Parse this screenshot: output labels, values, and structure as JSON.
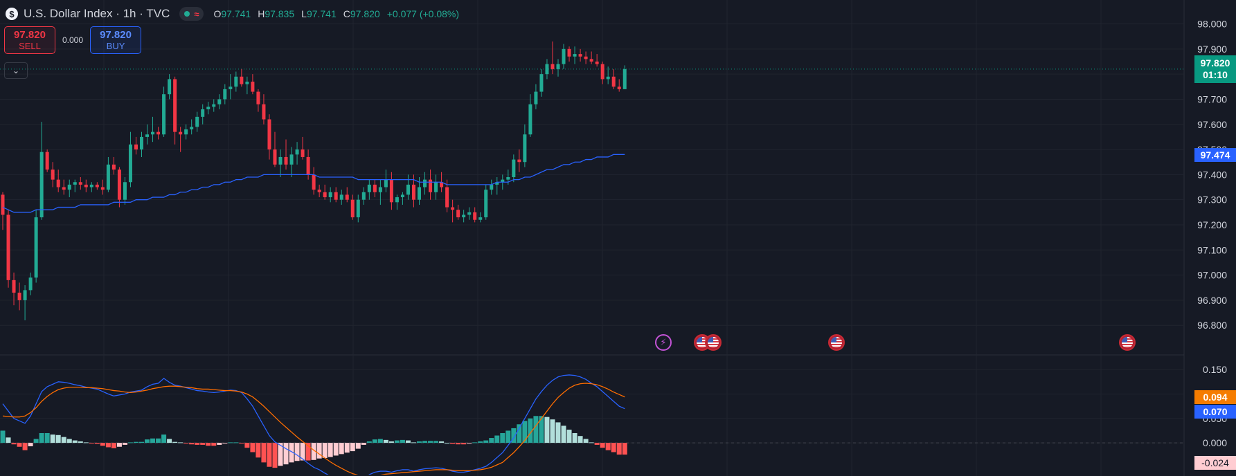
{
  "header": {
    "symbol_icon": "dollar-logo-icon",
    "logo_glyph": "$",
    "title": "U.S. Dollar Index · 1h · TVC",
    "ohlc": {
      "o_label": "O",
      "o": "97.741",
      "h_label": "H",
      "h": "97.835",
      "l_label": "L",
      "l": "97.741",
      "c_label": "C",
      "c": "97.820",
      "change": "+0.077 (+0.08%)"
    }
  },
  "trade": {
    "sell_price": "97.820",
    "sell_label": "SELL",
    "spread": "0.000",
    "buy_price": "97.820",
    "buy_label": "BUY"
  },
  "tags": {
    "last_price": "97.820",
    "countdown": "01:10",
    "ma_value": "97.474",
    "signal_value": "0.094",
    "macd_value": "0.070",
    "hist_value": "-0.024"
  },
  "colors": {
    "up": "#22ab94",
    "down": "#f23645",
    "ma": "#2962ff",
    "macd": "#2962ff",
    "signal": "#ff6d00",
    "background": "#161a25",
    "grid": "#20242f",
    "hist_pos_strong": "#26a69a",
    "hist_pos_weak": "#b2dfdb",
    "hist_neg_strong": "#ff5252",
    "hist_neg_weak": "#ffcdd2"
  },
  "events": [
    {
      "type": "lightning-icon",
      "glyph": "⚡"
    },
    {
      "type": "us-flag-icon"
    },
    {
      "type": "us-flag-icon"
    },
    {
      "type": "us-flag-icon"
    },
    {
      "type": "us-flag-icon"
    }
  ],
  "chart_data": [
    {
      "type": "candlestick",
      "title": "U.S. Dollar Index · 1h · TVC",
      "ylim": [
        96.74,
        98.04
      ],
      "yticks": [
        "98.000",
        "97.900",
        "97.800",
        "97.700",
        "97.600",
        "97.500",
        "97.400",
        "97.300",
        "97.200",
        "97.100",
        "97.000",
        "96.900",
        "96.800"
      ],
      "grid": true,
      "candles": [
        [
          97.32,
          97.33,
          97.18,
          97.24
        ],
        [
          97.24,
          97.26,
          96.95,
          96.98
        ],
        [
          96.98,
          97.01,
          96.88,
          96.93
        ],
        [
          96.93,
          96.97,
          96.86,
          96.9
        ],
        [
          96.9,
          96.96,
          96.82,
          96.94
        ],
        [
          96.94,
          97.01,
          96.92,
          96.99
        ],
        [
          96.99,
          97.26,
          96.97,
          97.23
        ],
        [
          97.23,
          97.61,
          97.22,
          97.49
        ],
        [
          97.49,
          97.5,
          97.41,
          97.42
        ],
        [
          97.42,
          97.45,
          97.35,
          97.38
        ],
        [
          97.38,
          97.42,
          97.33,
          97.35
        ],
        [
          97.35,
          97.38,
          97.32,
          97.34
        ],
        [
          97.34,
          97.38,
          97.31,
          97.36
        ],
        [
          97.36,
          97.38,
          97.33,
          97.37
        ],
        [
          97.37,
          97.39,
          97.34,
          97.36
        ],
        [
          97.36,
          97.38,
          97.33,
          97.35
        ],
        [
          97.35,
          97.37,
          97.33,
          97.36
        ],
        [
          97.36,
          97.37,
          97.34,
          97.35
        ],
        [
          97.35,
          97.38,
          97.32,
          97.34
        ],
        [
          97.34,
          97.47,
          97.33,
          97.44
        ],
        [
          97.44,
          97.47,
          97.4,
          97.42
        ],
        [
          97.42,
          97.43,
          97.27,
          97.3
        ],
        [
          97.3,
          97.39,
          97.28,
          97.37
        ],
        [
          97.37,
          97.57,
          97.35,
          97.52
        ],
        [
          97.52,
          97.55,
          97.48,
          97.5
        ],
        [
          97.5,
          97.57,
          97.47,
          97.55
        ],
        [
          97.55,
          97.6,
          97.52,
          97.56
        ],
        [
          97.56,
          97.63,
          97.53,
          97.57
        ],
        [
          97.57,
          97.59,
          97.54,
          97.56
        ],
        [
          97.56,
          97.75,
          97.55,
          97.72
        ],
        [
          97.72,
          97.8,
          97.7,
          97.78
        ],
        [
          97.78,
          97.79,
          97.52,
          97.57
        ],
        [
          97.57,
          97.59,
          97.49,
          97.56
        ],
        [
          97.56,
          97.6,
          97.54,
          97.58
        ],
        [
          97.58,
          97.62,
          97.56,
          97.59
        ],
        [
          97.59,
          97.65,
          97.57,
          97.63
        ],
        [
          97.63,
          97.68,
          97.6,
          97.66
        ],
        [
          97.66,
          97.69,
          97.64,
          97.67
        ],
        [
          97.67,
          97.7,
          97.65,
          97.68
        ],
        [
          97.68,
          97.72,
          97.66,
          97.7
        ],
        [
          97.7,
          97.76,
          97.68,
          97.74
        ],
        [
          97.74,
          97.8,
          97.7,
          97.75
        ],
        [
          97.75,
          97.81,
          97.73,
          97.79
        ],
        [
          97.79,
          97.82,
          97.75,
          97.76
        ],
        [
          97.76,
          97.79,
          97.72,
          97.77
        ],
        [
          97.77,
          97.8,
          97.72,
          97.73
        ],
        [
          97.73,
          97.74,
          97.65,
          97.68
        ],
        [
          97.68,
          97.72,
          97.6,
          97.62
        ],
        [
          97.62,
          97.64,
          97.46,
          97.5
        ],
        [
          97.5,
          97.57,
          97.43,
          97.44
        ],
        [
          97.44,
          97.5,
          97.39,
          97.47
        ],
        [
          97.47,
          97.54,
          97.42,
          97.44
        ],
        [
          97.44,
          97.51,
          97.39,
          97.48
        ],
        [
          97.48,
          97.53,
          97.44,
          97.5
        ],
        [
          97.5,
          97.55,
          97.46,
          97.47
        ],
        [
          97.47,
          97.5,
          97.38,
          97.4
        ],
        [
          97.4,
          97.43,
          97.32,
          97.34
        ],
        [
          97.34,
          97.36,
          97.31,
          97.33
        ],
        [
          97.33,
          97.36,
          97.3,
          97.31
        ],
        [
          97.31,
          97.35,
          97.29,
          97.33
        ],
        [
          97.33,
          97.35,
          97.29,
          97.3
        ],
        [
          97.3,
          97.34,
          97.28,
          97.32
        ],
        [
          97.32,
          97.35,
          97.29,
          97.3
        ],
        [
          97.3,
          97.32,
          97.22,
          97.23
        ],
        [
          97.23,
          97.32,
          97.21,
          97.3
        ],
        [
          97.3,
          97.35,
          97.28,
          97.33
        ],
        [
          97.33,
          97.38,
          97.3,
          97.36
        ],
        [
          97.36,
          97.38,
          97.31,
          97.33
        ],
        [
          97.33,
          97.38,
          97.28,
          97.35
        ],
        [
          97.35,
          97.42,
          97.33,
          97.38
        ],
        [
          97.38,
          97.41,
          97.26,
          97.29
        ],
        [
          97.29,
          97.32,
          97.26,
          97.31
        ],
        [
          97.31,
          97.33,
          97.28,
          97.32
        ],
        [
          97.32,
          97.4,
          97.3,
          97.36
        ],
        [
          97.36,
          97.4,
          97.27,
          97.3
        ],
        [
          97.3,
          97.39,
          97.28,
          97.35
        ],
        [
          97.35,
          97.41,
          97.32,
          97.38
        ],
        [
          97.38,
          97.42,
          97.3,
          97.33
        ],
        [
          97.33,
          97.4,
          97.3,
          97.37
        ],
        [
          97.37,
          97.41,
          97.33,
          97.35
        ],
        [
          97.35,
          97.38,
          97.25,
          97.27
        ],
        [
          97.27,
          97.3,
          97.21,
          97.26
        ],
        [
          97.26,
          97.28,
          97.22,
          97.23
        ],
        [
          97.23,
          97.26,
          97.21,
          97.24
        ],
        [
          97.24,
          97.27,
          97.22,
          97.25
        ],
        [
          97.25,
          97.27,
          97.21,
          97.22
        ],
        [
          97.22,
          97.25,
          97.21,
          97.23
        ],
        [
          97.23,
          97.36,
          97.22,
          97.34
        ],
        [
          97.34,
          97.38,
          97.32,
          97.36
        ],
        [
          97.36,
          97.39,
          97.32,
          97.37
        ],
        [
          97.37,
          97.4,
          97.34,
          97.38
        ],
        [
          97.38,
          97.42,
          97.36,
          97.39
        ],
        [
          97.39,
          97.48,
          97.37,
          97.46
        ],
        [
          97.46,
          97.5,
          97.41,
          97.45
        ],
        [
          97.45,
          97.6,
          97.43,
          97.56
        ],
        [
          97.56,
          97.72,
          97.55,
          97.68
        ],
        [
          97.68,
          97.76,
          97.66,
          97.73
        ],
        [
          97.73,
          97.82,
          97.71,
          97.8
        ],
        [
          97.8,
          97.86,
          97.78,
          97.84
        ],
        [
          97.84,
          97.93,
          97.8,
          97.82
        ],
        [
          97.82,
          97.86,
          97.79,
          97.84
        ],
        [
          97.84,
          97.92,
          97.82,
          97.9
        ],
        [
          97.9,
          97.91,
          97.85,
          97.87
        ],
        [
          97.87,
          97.91,
          97.84,
          97.88
        ],
        [
          97.88,
          97.9,
          97.85,
          97.87
        ],
        [
          97.87,
          97.89,
          97.84,
          97.86
        ],
        [
          97.86,
          97.89,
          97.84,
          97.85
        ],
        [
          97.85,
          97.88,
          97.83,
          97.84
        ],
        [
          97.84,
          97.85,
          97.76,
          97.78
        ],
        [
          97.78,
          97.83,
          97.76,
          97.79
        ],
        [
          97.79,
          97.82,
          97.74,
          97.75
        ],
        [
          97.75,
          97.78,
          97.73,
          97.74
        ],
        [
          97.74,
          97.835,
          97.741,
          97.82
        ]
      ],
      "moving_average": [
        97.27,
        97.26,
        97.25,
        97.25,
        97.25,
        97.25,
        97.26,
        97.26,
        97.26,
        97.26,
        97.27,
        97.27,
        97.27,
        97.27,
        97.28,
        97.28,
        97.28,
        97.28,
        97.28,
        97.28,
        97.29,
        97.29,
        97.29,
        97.29,
        97.3,
        97.3,
        97.3,
        97.31,
        97.31,
        97.31,
        97.32,
        97.32,
        97.33,
        97.33,
        97.34,
        97.34,
        97.35,
        97.35,
        97.36,
        97.36,
        97.37,
        97.37,
        97.38,
        97.38,
        97.39,
        97.39,
        97.39,
        97.4,
        97.4,
        97.4,
        97.4,
        97.4,
        97.4,
        97.4,
        97.4,
        97.4,
        97.4,
        97.39,
        97.39,
        97.39,
        97.39,
        97.39,
        97.39,
        97.39,
        97.38,
        97.38,
        97.38,
        97.38,
        97.38,
        97.38,
        97.38,
        97.38,
        97.38,
        97.38,
        97.38,
        97.37,
        97.37,
        97.37,
        97.37,
        97.37,
        97.36,
        97.36,
        97.36,
        97.36,
        97.36,
        97.36,
        97.36,
        97.36,
        97.36,
        97.37,
        97.37,
        97.37,
        97.38,
        97.38,
        97.39,
        97.39,
        97.4,
        97.41,
        97.42,
        97.42,
        97.43,
        97.44,
        97.44,
        97.45,
        97.45,
        97.46,
        97.46,
        97.47,
        97.47,
        97.47,
        97.48,
        97.48,
        97.48
      ]
    },
    {
      "type": "macd",
      "ylim": [
        -0.065,
        0.18
      ],
      "yticks": [
        "0.150",
        "0.100",
        "0.050",
        "0.000"
      ],
      "macd": [
        0.08,
        0.065,
        0.05,
        0.045,
        0.04,
        0.055,
        0.08,
        0.105,
        0.115,
        0.12,
        0.125,
        0.124,
        0.122,
        0.119,
        0.117,
        0.114,
        0.112,
        0.11,
        0.105,
        0.1,
        0.096,
        0.098,
        0.1,
        0.104,
        0.106,
        0.108,
        0.115,
        0.12,
        0.122,
        0.132,
        0.124,
        0.118,
        0.116,
        0.113,
        0.11,
        0.107,
        0.106,
        0.104,
        0.103,
        0.104,
        0.106,
        0.108,
        0.107,
        0.103,
        0.09,
        0.075,
        0.055,
        0.035,
        0.015,
        0.002,
        -0.005,
        -0.012,
        -0.018,
        -0.025,
        -0.033,
        -0.042,
        -0.05,
        -0.055,
        -0.062,
        -0.068,
        -0.072,
        -0.075,
        -0.078,
        -0.08,
        -0.078,
        -0.072,
        -0.065,
        -0.06,
        -0.058,
        -0.058,
        -0.06,
        -0.057,
        -0.055,
        -0.055,
        -0.058,
        -0.055,
        -0.053,
        -0.052,
        -0.051,
        -0.052,
        -0.055,
        -0.058,
        -0.06,
        -0.06,
        -0.058,
        -0.055,
        -0.052,
        -0.048,
        -0.04,
        -0.03,
        -0.02,
        -0.005,
        0.01,
        0.03,
        0.05,
        0.07,
        0.09,
        0.105,
        0.118,
        0.128,
        0.135,
        0.138,
        0.139,
        0.138,
        0.135,
        0.13,
        0.122,
        0.115,
        0.105,
        0.095,
        0.085,
        0.075,
        0.07
      ],
      "signal": [
        0.055,
        0.054,
        0.053,
        0.053,
        0.055,
        0.062,
        0.072,
        0.085,
        0.095,
        0.103,
        0.109,
        0.112,
        0.114,
        0.114,
        0.114,
        0.113,
        0.113,
        0.112,
        0.111,
        0.109,
        0.107,
        0.106,
        0.104,
        0.103,
        0.104,
        0.106,
        0.108,
        0.111,
        0.113,
        0.115,
        0.116,
        0.116,
        0.115,
        0.114,
        0.113,
        0.111,
        0.11,
        0.11,
        0.109,
        0.108,
        0.107,
        0.107,
        0.106,
        0.104,
        0.1,
        0.094,
        0.085,
        0.075,
        0.064,
        0.053,
        0.042,
        0.032,
        0.022,
        0.012,
        0.003,
        -0.006,
        -0.015,
        -0.023,
        -0.031,
        -0.039,
        -0.046,
        -0.052,
        -0.058,
        -0.063,
        -0.066,
        -0.068,
        -0.068,
        -0.067,
        -0.066,
        -0.064,
        -0.063,
        -0.062,
        -0.061,
        -0.06,
        -0.059,
        -0.058,
        -0.057,
        -0.056,
        -0.055,
        -0.055,
        -0.055,
        -0.056,
        -0.057,
        -0.057,
        -0.057,
        -0.056,
        -0.055,
        -0.053,
        -0.05,
        -0.045,
        -0.04,
        -0.03,
        -0.02,
        -0.008,
        0.005,
        0.02,
        0.035,
        0.05,
        0.065,
        0.08,
        0.093,
        0.103,
        0.112,
        0.118,
        0.121,
        0.122,
        0.121,
        0.119,
        0.115,
        0.11,
        0.104,
        0.099,
        0.094
      ],
      "histogram": [
        0.025,
        0.011,
        -0.003,
        -0.008,
        -0.015,
        -0.007,
        0.008,
        0.02,
        0.02,
        0.017,
        0.016,
        0.012,
        0.008,
        0.005,
        0.003,
        0.001,
        -0.001,
        -0.002,
        -0.006,
        -0.009,
        -0.011,
        -0.008,
        -0.004,
        0.001,
        0.002,
        0.002,
        0.007,
        0.009,
        0.009,
        0.017,
        0.008,
        0.002,
        0.001,
        -0.001,
        -0.003,
        -0.004,
        -0.004,
        -0.006,
        -0.006,
        -0.004,
        -0.001,
        0.001,
        0.001,
        -0.001,
        -0.01,
        -0.019,
        -0.03,
        -0.04,
        -0.049,
        -0.051,
        -0.047,
        -0.044,
        -0.04,
        -0.037,
        -0.036,
        -0.036,
        -0.035,
        -0.032,
        -0.031,
        -0.029,
        -0.026,
        -0.023,
        -0.02,
        -0.017,
        -0.012,
        -0.004,
        0.003,
        0.007,
        0.008,
        0.006,
        0.003,
        0.005,
        0.006,
        0.005,
        0.001,
        0.003,
        0.004,
        0.004,
        0.004,
        0.003,
        0.0,
        -0.002,
        -0.003,
        -0.003,
        -0.001,
        0.001,
        0.003,
        0.005,
        0.01,
        0.015,
        0.02,
        0.025,
        0.03,
        0.038,
        0.045,
        0.05,
        0.055,
        0.055,
        0.053,
        0.048,
        0.042,
        0.035,
        0.027,
        0.02,
        0.014,
        0.008,
        0.001,
        -0.004,
        -0.01,
        -0.015,
        -0.019,
        -0.024,
        -0.024
      ]
    }
  ]
}
